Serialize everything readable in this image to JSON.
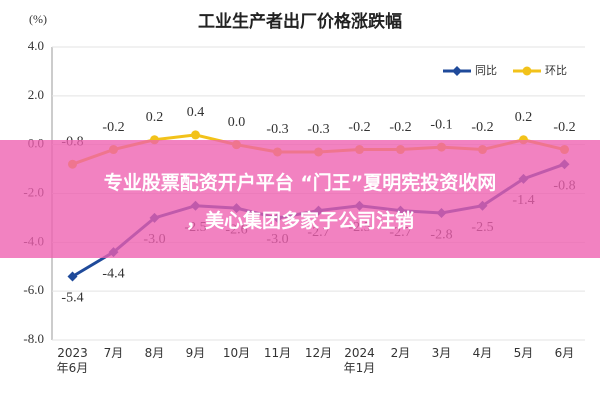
{
  "chart_data": {
    "type": "line",
    "title": "工业生产者出厂价格涨跌幅",
    "y_unit": "(%)",
    "categories": [
      "2023年6月",
      "7月",
      "8月",
      "9月",
      "10月",
      "11月",
      "12月",
      "2024年1月",
      "2月",
      "3月",
      "4月",
      "5月",
      "6月"
    ],
    "series": [
      {
        "name": "同比",
        "color": "#1f4a9a",
        "marker": "diamond",
        "values": [
          -5.4,
          -4.4,
          -3.0,
          -2.5,
          -2.6,
          -3.0,
          -2.7,
          -2.5,
          -2.7,
          -2.8,
          -2.5,
          -1.4,
          -0.8
        ],
        "value_labels": [
          "-5.4",
          "-4.4",
          "-3.0",
          "-2.5",
          "-2.6",
          "-3.0",
          "-2.7",
          "-2.5",
          "-2.7",
          "-2.8",
          "-2.5",
          "-1.4",
          "-0.8"
        ]
      },
      {
        "name": "环比",
        "color": "#f2c21a",
        "marker": "circle",
        "values": [
          -0.8,
          -0.2,
          0.2,
          0.4,
          0.0,
          -0.3,
          -0.3,
          -0.2,
          -0.2,
          -0.1,
          -0.2,
          0.2,
          -0.2
        ],
        "value_labels": [
          "-0.8",
          "-0.2",
          "0.2",
          "0.4",
          "0.0",
          "-0.3",
          "-0.3",
          "-0.2",
          "-0.2",
          "-0.1",
          "-0.2",
          "0.2",
          "-0.2"
        ]
      }
    ],
    "ylim": [
      -8,
      4
    ],
    "yticks": [
      {
        "value": 4,
        "label": "4.0"
      },
      {
        "value": 2,
        "label": "2.0"
      },
      {
        "value": 0,
        "label": "0.0"
      },
      {
        "value": -2,
        "label": "-2.0"
      },
      {
        "value": -4,
        "label": "-4.0"
      },
      {
        "value": -6,
        "label": "-6.0"
      },
      {
        "value": -8,
        "label": "-8.0"
      }
    ],
    "grid": true,
    "legend": "top-right"
  },
  "banner": {
    "lines": [
      "专业股票配资开户平台 “门王”夏明宪投资收网",
      "，美心集团多家子公司注销"
    ]
  }
}
